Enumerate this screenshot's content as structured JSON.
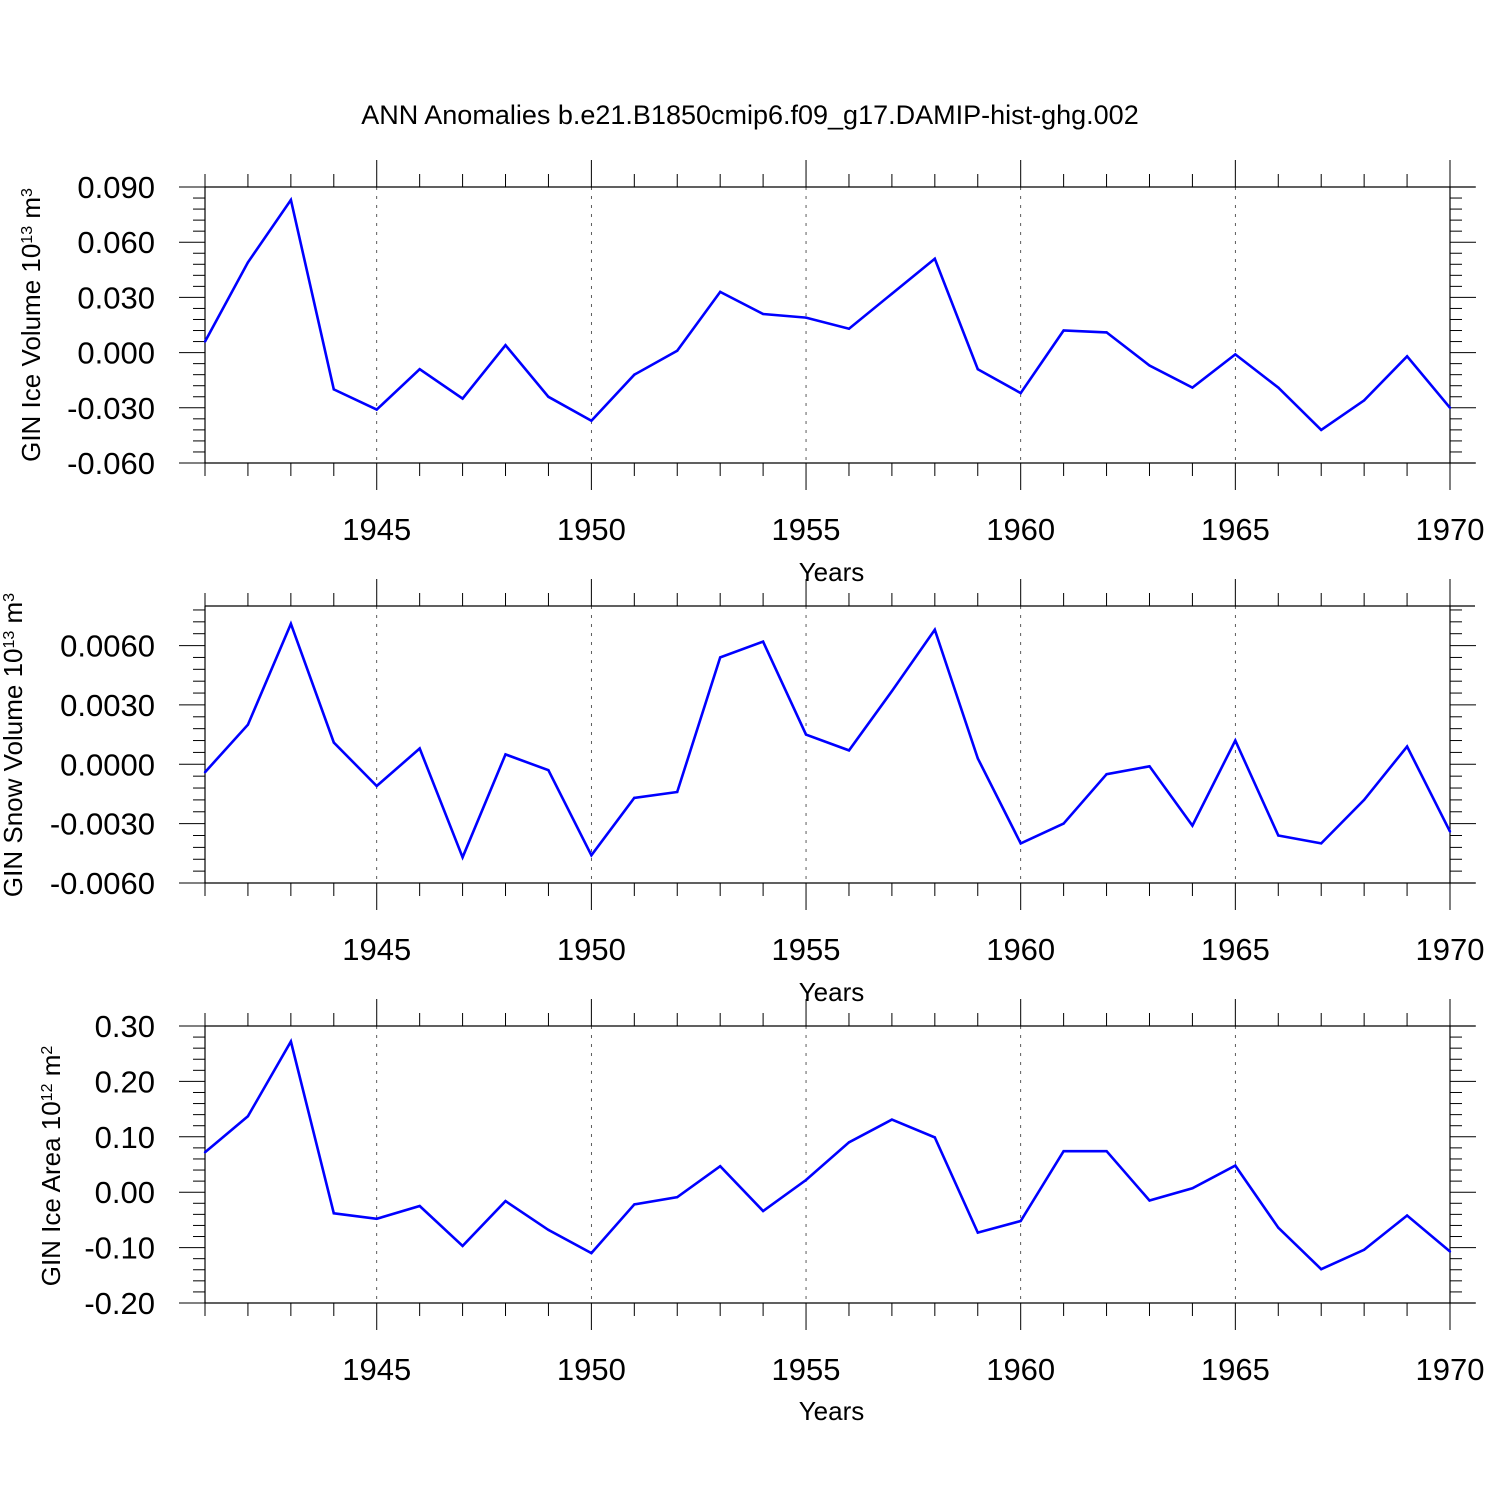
{
  "title": "ANN Anomalies b.e21.B1850cmip6.f09_g17.DAMIP-hist-ghg.002",
  "colors": {
    "line": "#0000ff",
    "axis": "#000000",
    "grid": "#000000"
  },
  "chart_data": [
    {
      "type": "line",
      "ylabel": {
        "main": "GIN Ice Volume 10",
        "exp": "13",
        "unit": " m",
        "unit_exp": "3"
      },
      "xlabel": "Years",
      "xlim": [
        1941,
        1970
      ],
      "ylim": [
        -0.06,
        0.09
      ],
      "yticks": [
        -0.06,
        -0.03,
        0.0,
        0.03,
        0.06,
        0.09
      ],
      "ytick_labels": [
        "-0.060",
        "-0.030",
        "0.000",
        "0.030",
        "0.060",
        "0.090"
      ],
      "xticks": [
        1945,
        1950,
        1955,
        1960,
        1965,
        1970
      ],
      "xtick_labels": [
        "1945",
        "1950",
        "1955",
        "1960",
        "1965",
        "1970"
      ],
      "grid": "dashed vertical at major x ticks",
      "x": [
        1941,
        1942,
        1943,
        1944,
        1945,
        1946,
        1947,
        1948,
        1949,
        1950,
        1951,
        1952,
        1953,
        1954,
        1955,
        1956,
        1957,
        1958,
        1959,
        1960,
        1961,
        1962,
        1963,
        1964,
        1965,
        1966,
        1967,
        1968,
        1969,
        1970
      ],
      "values": [
        0.006,
        0.049,
        0.083,
        -0.02,
        -0.031,
        -0.009,
        -0.025,
        0.004,
        -0.024,
        -0.037,
        -0.012,
        0.001,
        0.033,
        0.021,
        0.019,
        0.013,
        0.032,
        0.051,
        -0.009,
        -0.022,
        0.012,
        0.011,
        -0.007,
        -0.019,
        -0.001,
        -0.019,
        -0.042,
        -0.026,
        -0.002,
        -0.03
      ]
    },
    {
      "type": "line",
      "ylabel": {
        "main": "GIN Snow Volume 10",
        "exp": "13",
        "unit": " m",
        "unit_exp": "3"
      },
      "xlabel": "Years",
      "xlim": [
        1941,
        1970
      ],
      "ylim": [
        -0.006,
        0.008
      ],
      "yticks": [
        -0.006,
        -0.003,
        0.0,
        0.003,
        0.006
      ],
      "ytick_labels": [
        "-0.0060",
        "-0.0030",
        "0.0000",
        "0.0030",
        "0.0060"
      ],
      "xticks": [
        1945,
        1950,
        1955,
        1960,
        1965,
        1970
      ],
      "xtick_labels": [
        "1945",
        "1950",
        "1955",
        "1960",
        "1965",
        "1970"
      ],
      "grid": "dashed vertical at major x ticks",
      "x": [
        1941,
        1942,
        1943,
        1944,
        1945,
        1946,
        1947,
        1948,
        1949,
        1950,
        1951,
        1952,
        1953,
        1954,
        1955,
        1956,
        1957,
        1958,
        1959,
        1960,
        1961,
        1962,
        1963,
        1964,
        1965,
        1966,
        1967,
        1968,
        1969,
        1970
      ],
      "values": [
        -0.0004,
        0.002,
        0.0071,
        0.0011,
        -0.0011,
        0.0008,
        -0.0047,
        0.0005,
        -0.0003,
        -0.0046,
        -0.0017,
        -0.0014,
        0.0054,
        0.0062,
        0.0015,
        0.0007,
        0.0037,
        0.0068,
        0.0003,
        -0.004,
        -0.003,
        -0.0005,
        -0.0001,
        -0.0031,
        0.0012,
        -0.0036,
        -0.004,
        -0.0018,
        0.0009,
        -0.0034
      ]
    },
    {
      "type": "line",
      "ylabel": {
        "main": "GIN Ice Area 10",
        "exp": "12",
        "unit": " m",
        "unit_exp": "2"
      },
      "xlabel": "Years",
      "xlim": [
        1941,
        1970
      ],
      "ylim": [
        -0.2,
        0.3
      ],
      "yticks": [
        -0.2,
        -0.1,
        0.0,
        0.1,
        0.2,
        0.3
      ],
      "ytick_labels": [
        "-0.20",
        "-0.10",
        "0.00",
        "0.10",
        "0.20",
        "0.30"
      ],
      "xticks": [
        1945,
        1950,
        1955,
        1960,
        1965,
        1970
      ],
      "xtick_labels": [
        "1945",
        "1950",
        "1955",
        "1960",
        "1965",
        "1970"
      ],
      "grid": "dashed vertical at major x ticks",
      "x": [
        1941,
        1942,
        1943,
        1944,
        1945,
        1946,
        1947,
        1948,
        1949,
        1950,
        1951,
        1952,
        1953,
        1954,
        1955,
        1956,
        1957,
        1958,
        1959,
        1960,
        1961,
        1962,
        1963,
        1964,
        1965,
        1966,
        1967,
        1968,
        1969,
        1970
      ],
      "values": [
        0.072,
        0.137,
        0.272,
        -0.038,
        -0.048,
        -0.025,
        -0.097,
        -0.016,
        -0.068,
        -0.11,
        -0.022,
        -0.009,
        0.047,
        -0.034,
        0.022,
        0.09,
        0.131,
        0.099,
        -0.073,
        -0.052,
        0.074,
        0.074,
        -0.015,
        0.007,
        0.048,
        -0.064,
        -0.139,
        -0.104,
        -0.042,
        -0.107
      ]
    }
  ]
}
